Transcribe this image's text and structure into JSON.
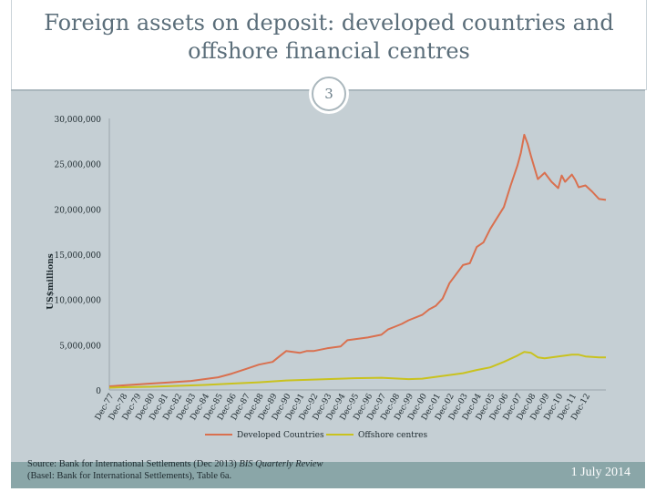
{
  "slide": {
    "title": "Foreign assets on deposit: developed countries and\noffshore financial centres",
    "number": "3",
    "source_prefix": "Source: Bank for International Settlements (Dec 2013) ",
    "source_italic": "BIS Quarterly Review",
    "source_suffix": "(Basel: Bank for International Settlements), Table 6a.",
    "date": "1 July 2014"
  },
  "colors": {
    "developed": "#d9704f",
    "offshore": "#c9c21e",
    "axis_text": "#1e2a2f"
  },
  "chart_data": {
    "type": "line",
    "title": "",
    "xlabel": "",
    "ylabel": "US$millions",
    "ylim": [
      0,
      30000000
    ],
    "yticks": [
      0,
      5000000,
      10000000,
      15000000,
      20000000,
      25000000,
      30000000
    ],
    "ytick_labels": [
      "0",
      "5,000,000",
      "10,000,000",
      "15,000,000",
      "20,000,000",
      "25,000,000",
      "30,000,000"
    ],
    "x_range": [
      1977,
      2013.5
    ],
    "categories": [
      "Dec-77",
      "Dec-78",
      "Dec-79",
      "Dec-80",
      "Dec-81",
      "Dec-82",
      "Dec-83",
      "Dec-84",
      "Dec-85",
      "Dec-86",
      "Dec-87",
      "Dec-88",
      "Dec-89",
      "Dec-90",
      "Dec-91",
      "Dec-92",
      "Dec-93",
      "Dec-94",
      "Dec-95",
      "Dec-96",
      "Dec-97",
      "Dec-98",
      "Dec-99",
      "Dec-00",
      "Dec-01",
      "Dec-02",
      "Dec-03",
      "Dec-04",
      "Dec-05",
      "Dec-06",
      "Dec-07",
      "Dec-08",
      "Dec-09",
      "Dec-10",
      "Dec-11",
      "Dec-12"
    ],
    "legend": "bottom",
    "series": [
      {
        "name": "Developed Countries",
        "x": [
          1977,
          1978,
          1979,
          1980,
          1981,
          1982,
          1983,
          1984,
          1985,
          1986,
          1987,
          1988,
          1989,
          1989.5,
          1990,
          1991,
          1991.5,
          1992,
          1993,
          1994,
          1994.5,
          1995,
          1996,
          1997,
          1997.5,
          1998,
          1998.5,
          1999,
          2000,
          2000.5,
          2001,
          2001.5,
          2002,
          2003,
          2003.5,
          2004,
          2004.5,
          2005,
          2005.5,
          2006,
          2006.5,
          2007,
          2007.25,
          2007.5,
          2007.75,
          2008,
          2008.5,
          2009,
          2009.5,
          2010,
          2010.25,
          2010.5,
          2011,
          2011.25,
          2011.5,
          2012,
          2012.5,
          2013,
          2013.5
        ],
        "y": [
          400000,
          500000,
          600000,
          700000,
          800000,
          900000,
          1000000,
          1200000,
          1400000,
          1800000,
          2300000,
          2800000,
          3100000,
          3700000,
          4300000,
          4100000,
          4300000,
          4300000,
          4600000,
          4800000,
          5500000,
          5600000,
          5800000,
          6100000,
          6700000,
          7000000,
          7300000,
          7700000,
          8300000,
          8900000,
          9300000,
          10100000,
          11800000,
          13800000,
          14000000,
          15800000,
          16300000,
          17800000,
          19000000,
          20200000,
          22600000,
          24800000,
          26200000,
          28200000,
          27200000,
          25800000,
          23300000,
          24000000,
          23000000,
          22300000,
          23700000,
          23000000,
          23800000,
          23200000,
          22400000,
          22600000,
          21900000,
          21100000,
          21000000
        ]
      },
      {
        "name": "Offshore centres",
        "x": [
          1977,
          1978,
          1980,
          1982,
          1984,
          1986,
          1988,
          1990,
          1991,
          1993,
          1995,
          1997,
          1999,
          2000,
          2001,
          2002,
          2003,
          2004,
          2005,
          2006,
          2007,
          2007.5,
          2008,
          2008.5,
          2009,
          2010,
          2011,
          2011.5,
          2012,
          2013,
          2013.5
        ],
        "y": [
          250000,
          300000,
          350000,
          450000,
          550000,
          700000,
          850000,
          1050000,
          1100000,
          1200000,
          1300000,
          1350000,
          1200000,
          1250000,
          1450000,
          1650000,
          1850000,
          2200000,
          2500000,
          3100000,
          3800000,
          4200000,
          4100000,
          3600000,
          3500000,
          3700000,
          3900000,
          3900000,
          3700000,
          3600000,
          3600000
        ]
      }
    ]
  }
}
